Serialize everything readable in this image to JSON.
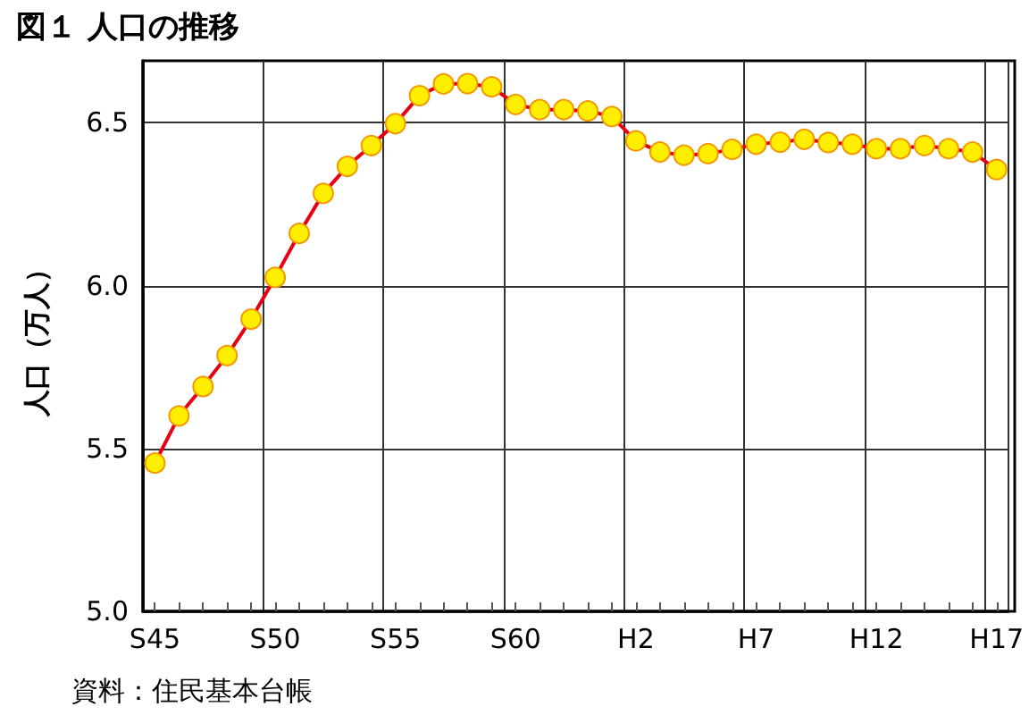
{
  "chart_data": {
    "type": "line",
    "title": "図１ 人口の推移",
    "ylabel": "人口（万人）",
    "categories": [
      "S45",
      null,
      null,
      null,
      null,
      "S50",
      null,
      null,
      null,
      null,
      "S55",
      null,
      null,
      null,
      null,
      "S60",
      null,
      null,
      null,
      null,
      "H2",
      null,
      null,
      null,
      null,
      "H7",
      null,
      null,
      null,
      null,
      "H12",
      null,
      null,
      null,
      null,
      "H17"
    ],
    "series": [
      {
        "color": "#e60012",
        "values": [
          5.455,
          5.6,
          5.69,
          5.785,
          5.897,
          6.025,
          6.16,
          6.283,
          6.366,
          6.43,
          6.497,
          6.583,
          6.619,
          6.62,
          6.61,
          6.556,
          6.54,
          6.54,
          6.536,
          6.519,
          6.444,
          6.41,
          6.4,
          6.405,
          6.418,
          6.434,
          6.44,
          6.449,
          6.439,
          6.434,
          6.42,
          6.42,
          6.43,
          6.42,
          6.41,
          6.356
        ]
      }
    ],
    "ylim": [
      5.0,
      6.69
    ],
    "yticks": [
      {
        "value": 5.0,
        "label": "5.0"
      },
      {
        "value": 5.5,
        "label": "5.5"
      },
      {
        "value": 6.0,
        "label": "6.0"
      },
      {
        "value": 6.5,
        "label": "6.5"
      }
    ],
    "grid": true,
    "marker": "circle",
    "line_style": "solid",
    "annotations": [
      "資料：住民基本台帳"
    ]
  }
}
